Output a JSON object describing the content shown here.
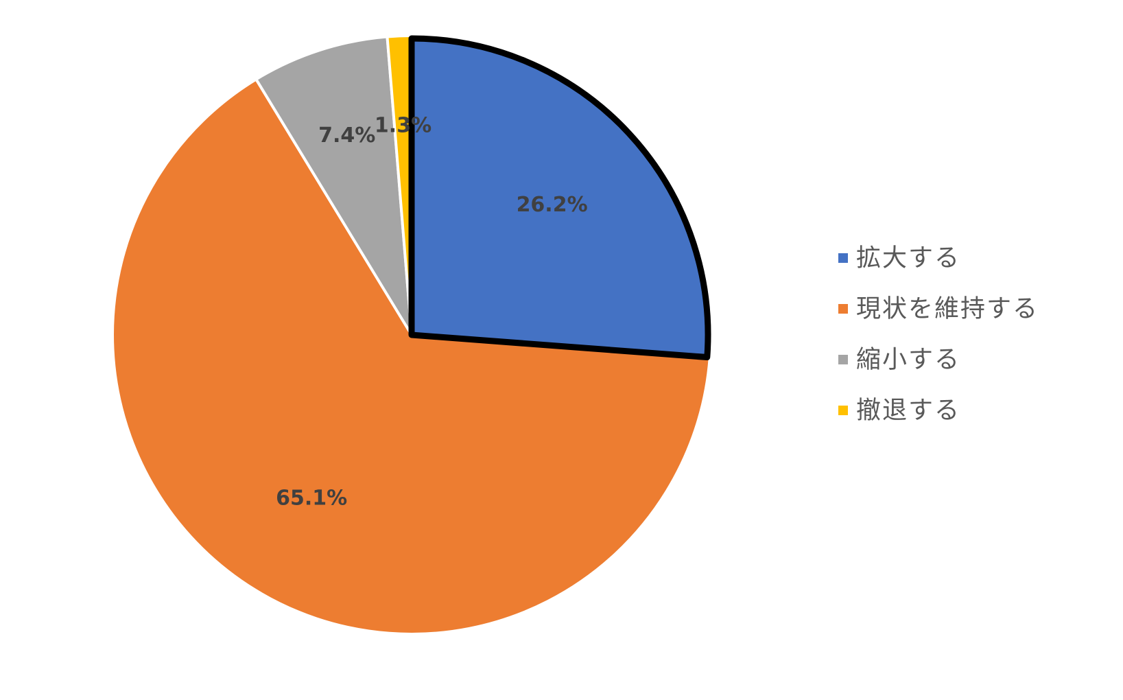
{
  "chart_data": {
    "type": "pie",
    "title": "",
    "legend_position": "right",
    "start_angle_deg": 0,
    "direction": "clockwise",
    "highlighted_slice": 0,
    "slices": [
      {
        "label": "拡大する",
        "value": 26.2,
        "display": "26.2%",
        "color": "#4472C4"
      },
      {
        "label": "現状を維持する",
        "value": 65.1,
        "display": "65.1%",
        "color": "#ED7D31"
      },
      {
        "label": "縮小する",
        "value": 7.4,
        "display": "7.4%",
        "color": "#A5A5A5"
      },
      {
        "label": "撤退する",
        "value": 1.3,
        "display": "1.3%",
        "color": "#FFC000"
      }
    ]
  }
}
